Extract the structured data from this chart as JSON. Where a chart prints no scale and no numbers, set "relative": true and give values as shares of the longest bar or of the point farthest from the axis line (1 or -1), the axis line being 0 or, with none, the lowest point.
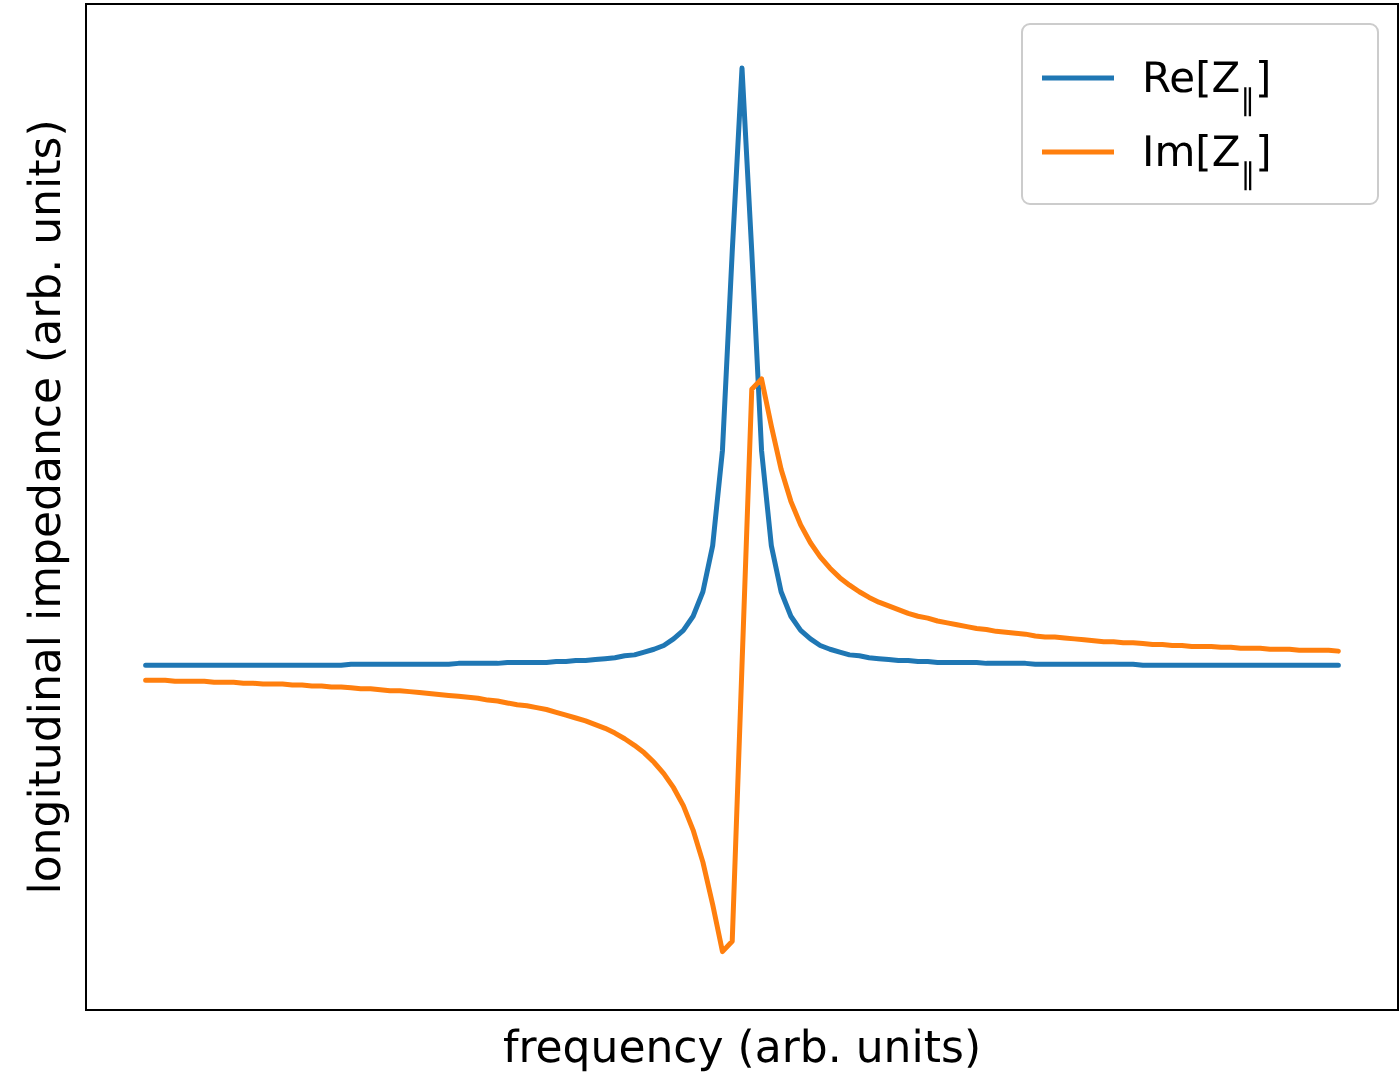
{
  "chart_data": {
    "type": "line",
    "relative": true,
    "xlabel": "frequency (arb. units)",
    "ylabel": "longitudinal impedance (arb. units)",
    "legend": "top right",
    "grid": false,
    "categories": [
      null,
      null,
      null,
      null,
      null,
      null,
      null,
      null,
      null,
      null,
      null,
      null,
      null,
      null,
      null,
      null,
      null,
      null,
      null,
      null,
      null,
      null,
      null,
      null,
      null,
      null,
      null,
      null,
      null,
      null,
      null,
      null,
      null,
      null,
      null,
      null,
      null,
      null,
      null,
      null,
      null,
      null,
      null,
      null,
      null,
      null,
      null,
      null,
      null,
      null,
      null,
      null,
      null,
      null,
      null,
      null,
      null,
      null,
      null,
      null,
      null,
      null,
      null,
      null,
      null,
      null,
      null,
      null,
      null,
      null,
      null,
      null,
      null,
      null,
      null,
      null,
      null,
      null,
      null,
      null,
      null,
      null,
      null,
      null,
      null,
      null,
      null,
      null,
      null,
      null,
      null,
      null,
      null,
      null,
      null,
      null,
      null,
      null,
      null,
      null,
      null,
      null,
      null,
      null,
      null,
      null,
      null,
      null,
      null,
      null,
      null,
      null,
      null,
      null,
      null,
      null,
      null,
      null,
      null,
      null,
      null,
      null,
      null
    ],
    "series": [
      {
        "name": "Re[Z$_{∥}$]",
        "color": "#1f77b4",
        "values": [
          0.366,
          0.366,
          0.366,
          0.366,
          0.366,
          0.366,
          0.366,
          0.366,
          0.366,
          0.366,
          0.366,
          0.366,
          0.366,
          0.366,
          0.366,
          0.366,
          0.366,
          0.366,
          0.366,
          0.366,
          0.366,
          0.367,
          0.367,
          0.367,
          0.367,
          0.367,
          0.367,
          0.367,
          0.367,
          0.367,
          0.367,
          0.367,
          0.368,
          0.368,
          0.368,
          0.368,
          0.368,
          0.369,
          0.369,
          0.369,
          0.369,
          0.369,
          0.37,
          0.37,
          0.371,
          0.371,
          0.372,
          0.373,
          0.374,
          0.376,
          0.377,
          0.38,
          0.383,
          0.387,
          0.394,
          0.403,
          0.418,
          0.444,
          0.493,
          0.594,
          0.805,
          1.0,
          0.805,
          0.594,
          0.493,
          0.444,
          0.418,
          0.403,
          0.394,
          0.387,
          0.383,
          0.38,
          0.377,
          0.376,
          0.374,
          0.373,
          0.372,
          0.371,
          0.371,
          0.37,
          0.37,
          0.369,
          0.369,
          0.369,
          0.369,
          0.369,
          0.368,
          0.368,
          0.368,
          0.368,
          0.368,
          0.367,
          0.367,
          0.367,
          0.367,
          0.367,
          0.367,
          0.367,
          0.367,
          0.367,
          0.367,
          0.367,
          0.366,
          0.366,
          0.366,
          0.366,
          0.366,
          0.366,
          0.366,
          0.366,
          0.366,
          0.366,
          0.366,
          0.366,
          0.366,
          0.366,
          0.366,
          0.366,
          0.366,
          0.366,
          0.366,
          0.366,
          0.366
        ]
      },
      {
        "name": "Im[Z$_{∥}$]",
        "color": "#ff7f0e",
        "values": [
          0.35,
          0.35,
          0.35,
          0.349,
          0.349,
          0.349,
          0.349,
          0.348,
          0.348,
          0.348,
          0.347,
          0.347,
          0.346,
          0.346,
          0.346,
          0.345,
          0.345,
          0.344,
          0.344,
          0.343,
          0.343,
          0.342,
          0.341,
          0.341,
          0.34,
          0.339,
          0.339,
          0.338,
          0.337,
          0.336,
          0.335,
          0.334,
          0.333,
          0.332,
          0.331,
          0.329,
          0.328,
          0.326,
          0.324,
          0.323,
          0.321,
          0.319,
          0.316,
          0.313,
          0.31,
          0.307,
          0.303,
          0.299,
          0.294,
          0.288,
          0.281,
          0.273,
          0.263,
          0.251,
          0.236,
          0.217,
          0.191,
          0.157,
          0.112,
          0.062,
          0.073,
          0.366,
          0.659,
          0.67,
          0.62,
          0.574,
          0.54,
          0.515,
          0.496,
          0.481,
          0.469,
          0.459,
          0.451,
          0.444,
          0.438,
          0.433,
          0.429,
          0.425,
          0.421,
          0.418,
          0.416,
          0.413,
          0.411,
          0.409,
          0.407,
          0.405,
          0.404,
          0.402,
          0.401,
          0.4,
          0.399,
          0.397,
          0.396,
          0.396,
          0.395,
          0.394,
          0.393,
          0.392,
          0.391,
          0.391,
          0.39,
          0.39,
          0.389,
          0.388,
          0.388,
          0.387,
          0.387,
          0.386,
          0.386,
          0.386,
          0.385,
          0.385,
          0.384,
          0.384,
          0.384,
          0.383,
          0.383,
          0.383,
          0.382,
          0.382,
          0.382,
          0.382,
          0.381
        ]
      }
    ]
  }
}
